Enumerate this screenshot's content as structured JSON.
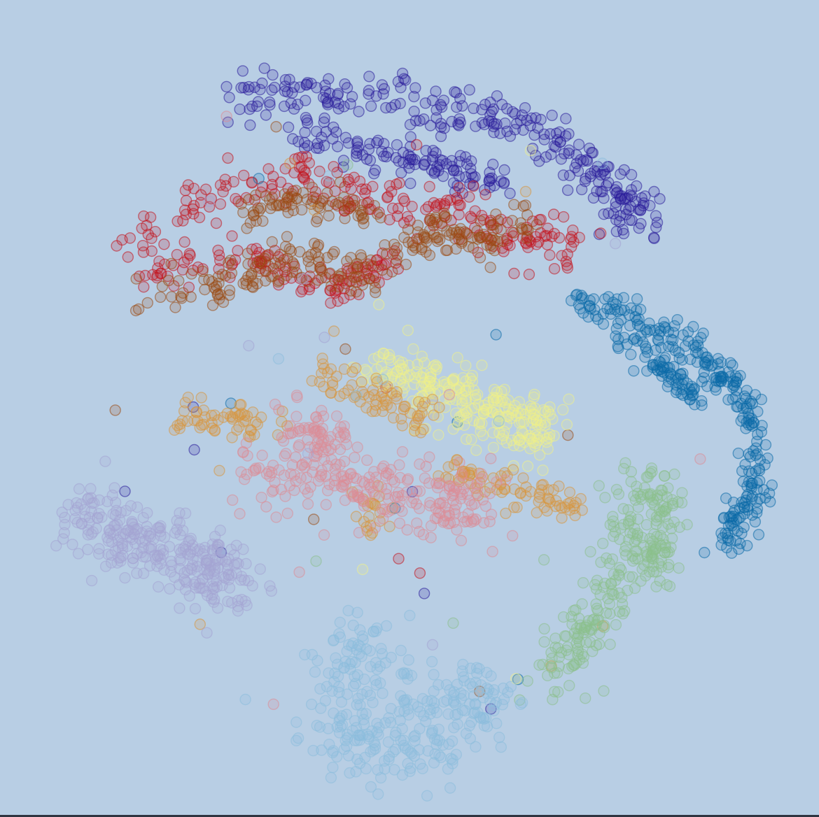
{
  "background_color": "#b8cee4",
  "chart_data": {
    "type": "scatter",
    "title": "",
    "xlabel": "",
    "ylabel": "",
    "xlim": [
      -50,
      50
    ],
    "ylim": [
      -50,
      50
    ],
    "grid": false,
    "axes_visible": false,
    "legend": "none",
    "series": [
      {
        "id": "dark-blue",
        "color": "#2a1e9a",
        "count": 380,
        "seed": 11,
        "segments": [
          {
            "path": [
              [
                -24,
                41
              ],
              [
                -5,
                42
              ],
              [
                15,
                38
              ],
              [
                25,
                31
              ],
              [
                32,
                24
              ]
            ],
            "spread": 3.2
          },
          {
            "path": [
              [
                -14,
                37
              ],
              [
                0,
                33
              ],
              [
                12,
                30
              ]
            ],
            "spread": 2.4
          }
        ]
      },
      {
        "id": "red",
        "color": "#c4121c",
        "count": 330,
        "seed": 23,
        "segments": [
          {
            "path": [
              [
                -38,
                21
              ],
              [
                -28,
                28
              ],
              [
                -15,
                31
              ],
              [
                -5,
                28
              ],
              [
                5,
                27
              ],
              [
                15,
                22
              ],
              [
                22,
                22
              ]
            ],
            "spread": 3.0
          },
          {
            "path": [
              [
                -35,
                18
              ],
              [
                -22,
                20
              ],
              [
                -10,
                16
              ],
              [
                -2,
                20
              ]
            ],
            "spread": 2.4
          }
        ]
      },
      {
        "id": "brown",
        "color": "#9a4a12",
        "count": 300,
        "seed": 37,
        "segments": [
          {
            "path": [
              [
                -36,
                15
              ],
              [
                -24,
                17
              ],
              [
                -14,
                20
              ],
              [
                -6,
                17
              ],
              [
                2,
                24
              ],
              [
                8,
                22
              ],
              [
                16,
                25
              ]
            ],
            "spread": 2.6
          },
          {
            "path": [
              [
                -22,
                26
              ],
              [
                -14,
                28
              ],
              [
                -4,
                26
              ]
            ],
            "spread": 2.0
          }
        ]
      },
      {
        "id": "blue",
        "color": "#0a6aa8",
        "count": 330,
        "seed": 41,
        "segments": [
          {
            "path": [
              [
                21,
                14
              ],
              [
                28,
                13
              ],
              [
                34,
                10
              ],
              [
                39,
                7
              ],
              [
                43,
                3
              ],
              [
                46,
                -2
              ],
              [
                46,
                -9
              ],
              [
                44,
                -14
              ],
              [
                42,
                -18
              ]
            ],
            "spread": 2.0
          },
          {
            "path": [
              [
                27,
                10
              ],
              [
                33,
                6
              ],
              [
                38,
                1
              ]
            ],
            "spread": 1.5
          }
        ]
      },
      {
        "id": "yellow",
        "color": "#eef08a",
        "count": 250,
        "seed": 53,
        "segments": [
          {
            "path": [
              [
                -4,
                6
              ],
              [
                2,
                3
              ],
              [
                8,
                1
              ],
              [
                14,
                -1
              ],
              [
                18,
                -3
              ]
            ],
            "spread": 4.0
          }
        ]
      },
      {
        "id": "orange",
        "color": "#d8963c",
        "count": 230,
        "seed": 67,
        "segments": [
          {
            "path": [
              [
                -30,
                -1
              ],
              [
                -24,
                -2
              ],
              [
                -18,
                -1
              ]
            ],
            "spread": 2.4
          },
          {
            "path": [
              [
                -12,
                5
              ],
              [
                -6,
                2
              ],
              [
                -2,
                0
              ],
              [
                2,
                -1
              ]
            ],
            "spread": 2.2
          },
          {
            "path": [
              [
                6,
                -8
              ],
              [
                12,
                -10
              ],
              [
                18,
                -12
              ],
              [
                22,
                -13
              ]
            ],
            "spread": 1.9
          },
          {
            "path": [
              [
                -6,
                -12
              ],
              [
                -4,
                -16
              ]
            ],
            "spread": 2.0
          }
        ]
      },
      {
        "id": "pink",
        "color": "#dc8c96",
        "count": 290,
        "seed": 71,
        "segments": [
          {
            "path": [
              [
                -20,
                -9
              ],
              [
                -14,
                -8
              ],
              [
                -8,
                -10
              ],
              [
                -2,
                -11
              ],
              [
                4,
                -12
              ],
              [
                10,
                -13
              ]
            ],
            "spread": 4.5
          },
          {
            "path": [
              [
                -16,
                -2
              ],
              [
                -10,
                -4
              ]
            ],
            "spread": 3.0
          }
        ]
      },
      {
        "id": "lavender",
        "color": "#a4a4d4",
        "count": 290,
        "seed": 83,
        "segments": [
          {
            "path": [
              [
                -44,
                -13
              ],
              [
                -38,
                -17
              ],
              [
                -32,
                -19
              ],
              [
                -27,
                -21
              ],
              [
                -22,
                -24
              ]
            ],
            "spread": 4.5
          }
        ]
      },
      {
        "id": "green",
        "color": "#8cc08c",
        "count": 270,
        "seed": 97,
        "segments": [
          {
            "path": [
              [
                31,
                -8
              ],
              [
                30,
                -14
              ],
              [
                28,
                -20
              ],
              [
                26,
                -26
              ],
              [
                22,
                -31
              ],
              [
                19,
                -36
              ]
            ],
            "spread": 3.5
          },
          {
            "path": [
              [
                34,
                -10
              ],
              [
                34,
                -16
              ],
              [
                32,
                -22
              ]
            ],
            "spread": 2.5
          }
        ]
      },
      {
        "id": "light-blue",
        "color": "#8cbedc",
        "count": 310,
        "seed": 101,
        "segments": [
          {
            "path": [
              [
                -5,
                -30
              ],
              [
                -8,
                -35
              ],
              [
                -10,
                -42
              ],
              [
                -3,
                -46
              ],
              [
                5,
                -44
              ],
              [
                10,
                -39
              ],
              [
                8,
                -34
              ]
            ],
            "spread": 4.5
          },
          {
            "path": [
              [
                -2,
                -38
              ],
              [
                3,
                -40
              ]
            ],
            "spread": 3.5
          }
        ]
      }
    ]
  }
}
